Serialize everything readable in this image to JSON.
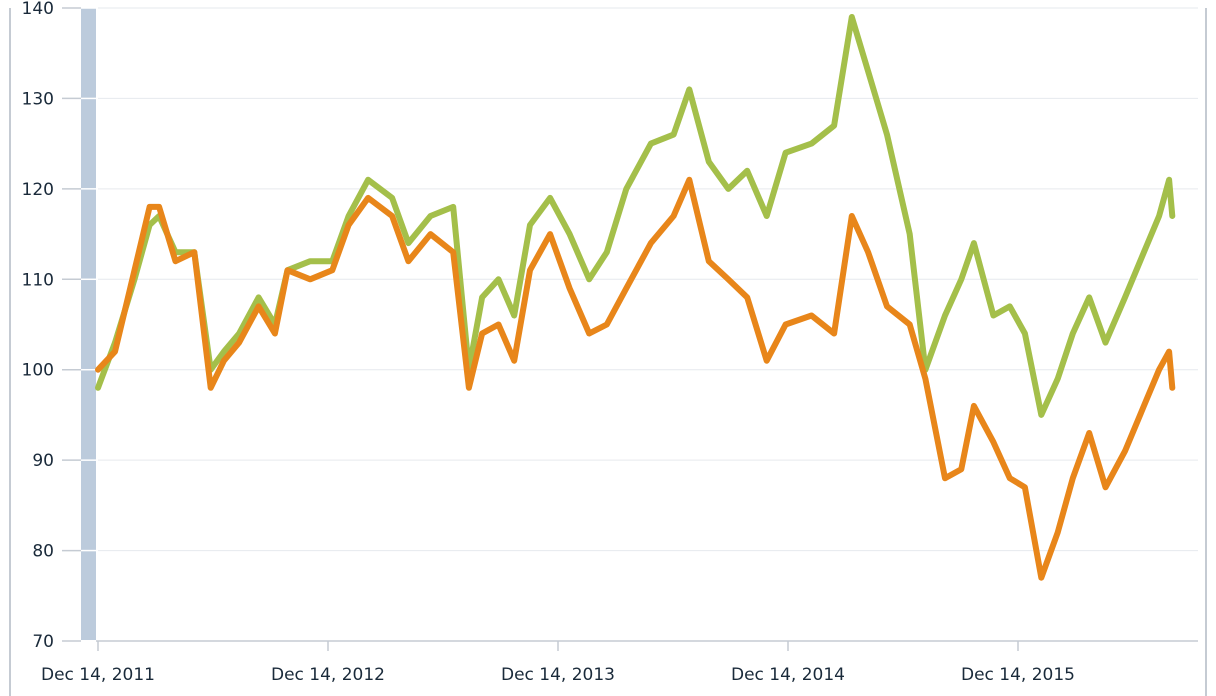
{
  "chart_data": {
    "type": "line",
    "title": "",
    "xlabel": "",
    "ylabel": "",
    "x_range": [
      "2011-12-14",
      "2016-08-15"
    ],
    "ylim": [
      70,
      140
    ],
    "yticks": [
      70,
      80,
      90,
      100,
      110,
      120,
      130,
      140
    ],
    "xticks": [
      "Dec 14, 2011",
      "Dec 14, 2012",
      "Dec 14, 2013",
      "Dec 14, 2014",
      "Dec 14, 2015"
    ],
    "grid": true,
    "legend": "none",
    "series": [
      {
        "color": "#a4bf4a",
        "points": [
          [
            "2011-12-14",
            98
          ],
          [
            "2012-01-10",
            103
          ],
          [
            "2012-02-10",
            110
          ],
          [
            "2012-03-05",
            116
          ],
          [
            "2012-03-20",
            117
          ],
          [
            "2012-04-15",
            113
          ],
          [
            "2012-05-15",
            113
          ],
          [
            "2012-06-10",
            100
          ],
          [
            "2012-07-01",
            102
          ],
          [
            "2012-07-25",
            104
          ],
          [
            "2012-08-25",
            108
          ],
          [
            "2012-09-20",
            105
          ],
          [
            "2012-10-10",
            111
          ],
          [
            "2012-11-15",
            112
          ],
          [
            "2012-12-20",
            112
          ],
          [
            "2013-01-15",
            117
          ],
          [
            "2013-02-15",
            121
          ],
          [
            "2013-03-25",
            119
          ],
          [
            "2013-04-20",
            114
          ],
          [
            "2013-05-25",
            117
          ],
          [
            "2013-06-30",
            118
          ],
          [
            "2013-07-25",
            100
          ],
          [
            "2013-08-15",
            108
          ],
          [
            "2013-09-10",
            110
          ],
          [
            "2013-10-05",
            106
          ],
          [
            "2013-10-30",
            116
          ],
          [
            "2013-12-01",
            119
          ],
          [
            "2014-01-01",
            115
          ],
          [
            "2014-02-01",
            110
          ],
          [
            "2014-03-01",
            113
          ],
          [
            "2014-04-01",
            120
          ],
          [
            "2014-05-10",
            125
          ],
          [
            "2014-06-15",
            126
          ],
          [
            "2014-07-10",
            131
          ],
          [
            "2014-08-10",
            123
          ],
          [
            "2014-09-10",
            120
          ],
          [
            "2014-10-10",
            122
          ],
          [
            "2014-11-10",
            117
          ],
          [
            "2014-12-10",
            124
          ],
          [
            "2015-01-20",
            125
          ],
          [
            "2015-02-25",
            127
          ],
          [
            "2015-03-25",
            139
          ],
          [
            "2015-04-20",
            133
          ],
          [
            "2015-05-20",
            126
          ],
          [
            "2015-06-25",
            115
          ],
          [
            "2015-07-20",
            100
          ],
          [
            "2015-08-20",
            106
          ],
          [
            "2015-09-15",
            110
          ],
          [
            "2015-10-05",
            114
          ],
          [
            "2015-11-05",
            106
          ],
          [
            "2015-12-01",
            107
          ],
          [
            "2015-12-25",
            104
          ],
          [
            "2016-01-20",
            95
          ],
          [
            "2016-02-15",
            99
          ],
          [
            "2016-03-10",
            104
          ],
          [
            "2016-04-05",
            108
          ],
          [
            "2016-05-01",
            103
          ],
          [
            "2016-06-01",
            108
          ],
          [
            "2016-07-01",
            113
          ],
          [
            "2016-07-25",
            117
          ],
          [
            "2016-08-10",
            121
          ],
          [
            "2016-08-15",
            117
          ]
        ]
      },
      {
        "color": "#e8861a",
        "points": [
          [
            "2011-12-14",
            100
          ],
          [
            "2012-01-10",
            102
          ],
          [
            "2012-02-10",
            111
          ],
          [
            "2012-03-05",
            118
          ],
          [
            "2012-03-20",
            118
          ],
          [
            "2012-04-15",
            112
          ],
          [
            "2012-05-15",
            113
          ],
          [
            "2012-06-10",
            98
          ],
          [
            "2012-07-01",
            101
          ],
          [
            "2012-07-25",
            103
          ],
          [
            "2012-08-25",
            107
          ],
          [
            "2012-09-20",
            104
          ],
          [
            "2012-10-10",
            111
          ],
          [
            "2012-11-15",
            110
          ],
          [
            "2012-12-20",
            111
          ],
          [
            "2013-01-15",
            116
          ],
          [
            "2013-02-15",
            119
          ],
          [
            "2013-03-25",
            117
          ],
          [
            "2013-04-20",
            112
          ],
          [
            "2013-05-25",
            115
          ],
          [
            "2013-06-30",
            113
          ],
          [
            "2013-07-25",
            98
          ],
          [
            "2013-08-15",
            104
          ],
          [
            "2013-09-10",
            105
          ],
          [
            "2013-10-05",
            101
          ],
          [
            "2013-10-30",
            111
          ],
          [
            "2013-12-01",
            115
          ],
          [
            "2014-01-01",
            109
          ],
          [
            "2014-02-01",
            104
          ],
          [
            "2014-03-01",
            105
          ],
          [
            "2014-04-01",
            109
          ],
          [
            "2014-05-10",
            114
          ],
          [
            "2014-06-15",
            117
          ],
          [
            "2014-07-10",
            121
          ],
          [
            "2014-08-10",
            112
          ],
          [
            "2014-09-10",
            110
          ],
          [
            "2014-10-10",
            108
          ],
          [
            "2014-11-10",
            101
          ],
          [
            "2014-12-10",
            105
          ],
          [
            "2015-01-20",
            106
          ],
          [
            "2015-02-25",
            104
          ],
          [
            "2015-03-25",
            117
          ],
          [
            "2015-04-20",
            113
          ],
          [
            "2015-05-20",
            107
          ],
          [
            "2015-06-25",
            105
          ],
          [
            "2015-07-20",
            99
          ],
          [
            "2015-08-20",
            88
          ],
          [
            "2015-09-15",
            89
          ],
          [
            "2015-10-05",
            96
          ],
          [
            "2015-11-05",
            92
          ],
          [
            "2015-12-01",
            88
          ],
          [
            "2015-12-25",
            87
          ],
          [
            "2016-01-20",
            77
          ],
          [
            "2016-02-15",
            82
          ],
          [
            "2016-03-10",
            88
          ],
          [
            "2016-04-05",
            93
          ],
          [
            "2016-05-01",
            87
          ],
          [
            "2016-06-01",
            91
          ],
          [
            "2016-07-01",
            96
          ],
          [
            "2016-07-25",
            100
          ],
          [
            "2016-08-10",
            102
          ],
          [
            "2016-08-15",
            98
          ]
        ]
      }
    ]
  }
}
